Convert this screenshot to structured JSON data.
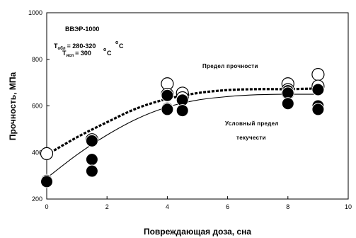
{
  "chart_data": {
    "type": "scatter",
    "xlabel": "Повреждающая доза, сна",
    "ylabel": "Прочность, МПа",
    "xlim": [
      0,
      10
    ],
    "ylim": [
      200,
      1000
    ],
    "xticks": [
      0,
      2,
      4,
      6,
      8,
      10
    ],
    "yticks": [
      200,
      400,
      600,
      800,
      1000
    ],
    "grid": false,
    "annotations": {
      "material": "ВВЭР-1000",
      "t_irr_label": "T",
      "t_irr_sub": "обл",
      "t_irr_value": "= 280-320",
      "t_test_label": "T",
      "t_test_sub": "исп",
      "t_test_value": "= 300",
      "degree_unit": "o",
      "celsius": "C",
      "ultimate_strength": "Предел прочности",
      "yield_strength_line1": "Условный предел",
      "yield_strength_line2": "текучести"
    },
    "series": [
      {
        "style": "open-circle",
        "points": [
          [
            0,
            395
          ],
          [
            1.5,
            455
          ],
          [
            4,
            695
          ],
          [
            4,
            650
          ],
          [
            4.5,
            655
          ],
          [
            4.5,
            635
          ],
          [
            8,
            695
          ],
          [
            8,
            670
          ],
          [
            8,
            655
          ],
          [
            9,
            735
          ],
          [
            9,
            685
          ]
        ]
      },
      {
        "style": "filled-circle",
        "points": [
          [
            0,
            280
          ],
          [
            0,
            275
          ],
          [
            1.5,
            450
          ],
          [
            1.5,
            370
          ],
          [
            1.5,
            320
          ],
          [
            4,
            645
          ],
          [
            4,
            590
          ],
          [
            4,
            585
          ],
          [
            4.5,
            625
          ],
          [
            4.5,
            580
          ],
          [
            8,
            665
          ],
          [
            8,
            655
          ],
          [
            8,
            610
          ],
          [
            9,
            670
          ],
          [
            9,
            600
          ],
          [
            9,
            585
          ]
        ]
      },
      {
        "style": "dashed-trend",
        "points": [
          [
            0,
            390
          ],
          [
            1,
            465
          ],
          [
            2,
            530
          ],
          [
            3,
            590
          ],
          [
            4,
            630
          ],
          [
            5,
            655
          ],
          [
            6,
            668
          ],
          [
            7,
            672
          ],
          [
            8,
            672
          ],
          [
            9,
            675
          ]
        ]
      },
      {
        "style": "solid-trend",
        "points": [
          [
            0,
            290
          ],
          [
            1,
            390
          ],
          [
            2,
            475
          ],
          [
            3,
            545
          ],
          [
            4,
            595
          ],
          [
            5,
            625
          ],
          [
            6,
            640
          ],
          [
            7,
            648
          ],
          [
            8,
            650
          ],
          [
            9,
            650
          ]
        ]
      }
    ]
  }
}
